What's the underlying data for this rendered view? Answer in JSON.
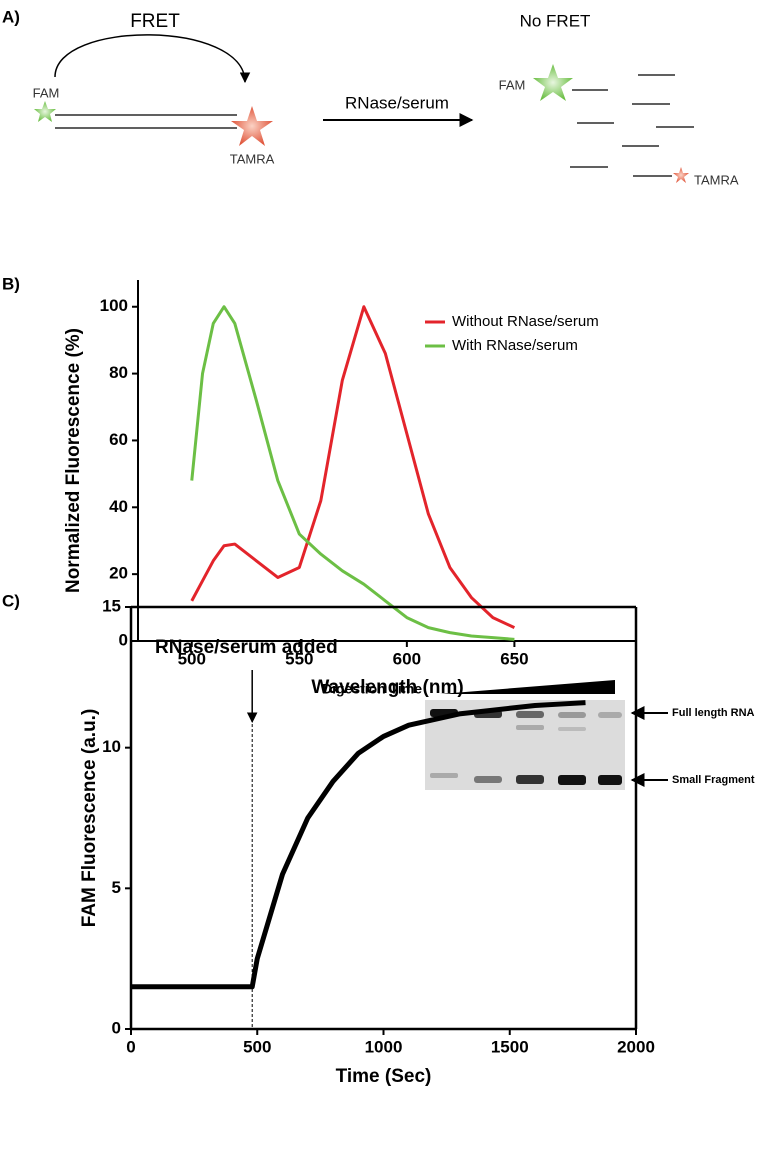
{
  "diagram": {
    "label": "A)",
    "fret": "FRET",
    "fam_left": "FAM",
    "tamra_left": "TAMRA",
    "process": "RNase/serum",
    "no_fret": "No FRET",
    "fam_right": "FAM",
    "tamra_right": "TAMRA"
  },
  "gel": {
    "digestion": "Digestion Time",
    "full": "Full length RNA",
    "small": "Small Fragment"
  },
  "chart_data": [
    {
      "type": "line",
      "label": "B)",
      "x_label": "Wavelength (nm)",
      "y_label": "Normalized Fluorescence (%)",
      "frame": "open",
      "legend": "top-right",
      "x": [
        500,
        505,
        510,
        515,
        520,
        530,
        540,
        550,
        560,
        570,
        580,
        590,
        600,
        610,
        620,
        630,
        640,
        650
      ],
      "series": [
        {
          "name": "Without RNase/serum",
          "color": "#e3242b",
          "values": [
            12,
            18,
            24,
            28.5,
            29,
            24,
            19,
            22,
            42,
            78,
            100,
            86,
            62,
            38,
            22,
            13,
            7,
            4
          ]
        },
        {
          "name": "With RNase/serum",
          "color": "#6cbf45",
          "values": [
            48,
            80,
            95,
            100,
            95,
            72,
            48,
            32,
            26,
            21,
            17,
            12,
            7,
            4,
            2.5,
            1.5,
            1,
            0.5
          ]
        }
      ],
      "xlim": [
        475,
        707
      ],
      "ylim": [
        0,
        108
      ],
      "xticks": [
        500,
        550,
        600,
        650
      ],
      "yticks": [
        0,
        20,
        40,
        60,
        80,
        100
      ]
    },
    {
      "type": "line",
      "label": "C)",
      "x_label": "Time (Sec)",
      "y_label": "FAM Fluorescence (a.u.)",
      "frame": "box",
      "annotation": {
        "text": "RNase/serum added",
        "x": 480
      },
      "x": [
        0,
        100,
        200,
        300,
        400,
        480,
        500,
        600,
        700,
        800,
        900,
        1000,
        1100,
        1200,
        1300,
        1400,
        1500,
        1600,
        1700,
        1800
      ],
      "series": [
        {
          "name": null,
          "color": "#000000",
          "values": [
            1.5,
            1.5,
            1.5,
            1.5,
            1.5,
            1.5,
            2.5,
            5.5,
            7.5,
            8.8,
            9.8,
            10.4,
            10.8,
            11.0,
            11.2,
            11.3,
            11.4,
            11.5,
            11.55,
            11.6
          ]
        }
      ],
      "xlim": [
        0,
        2000
      ],
      "ylim": [
        0,
        15
      ],
      "xticks": [
        0,
        500,
        1000,
        1500,
        2000
      ],
      "yticks": [
        0,
        5,
        10,
        15
      ]
    }
  ]
}
